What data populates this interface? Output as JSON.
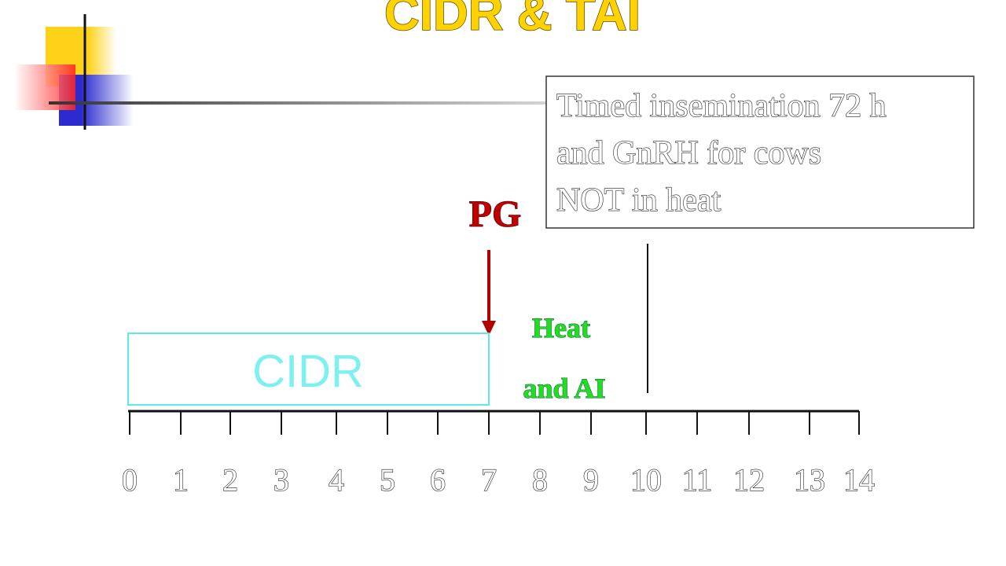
{
  "title": "CIDR & TAI",
  "note": {
    "lines": [
      "Timed insemination 72 h",
      "and GnRH for cows",
      "NOT in heat"
    ]
  },
  "pg_label": "PG",
  "cidr_label": "CIDR",
  "heat_label": {
    "lines": [
      "Heat",
      "and AI"
    ]
  },
  "timeline": {
    "labels": [
      "0",
      "1",
      "2",
      "3",
      "4",
      "5",
      "6",
      "7",
      "8",
      "9",
      "10",
      "11",
      "12",
      "13",
      "14"
    ]
  }
}
